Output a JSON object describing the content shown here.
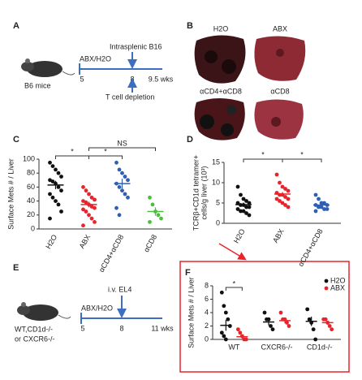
{
  "panels": {
    "A": {
      "label": "A",
      "subject": "B6 mice",
      "treatment": "ABX/H2O",
      "event": "Intrasplenic B16",
      "ticks": [
        "5",
        "8",
        "9.5 wks"
      ],
      "depletion": "T cell depletion"
    },
    "B": {
      "label": "B",
      "photos": [
        "H2O",
        "ABX",
        "αCD4+αCD8",
        "αCD8"
      ]
    },
    "C": {
      "label": "C"
    },
    "D": {
      "label": "D"
    },
    "E": {
      "label": "E",
      "subject": [
        "WT,CD1d-/-",
        "or CXCR6-/-"
      ],
      "treatment": "ABX/H2O",
      "event": "i.v. EL4",
      "ticks": [
        "5",
        "8",
        "11 wks"
      ]
    },
    "F": {
      "label": "F"
    }
  },
  "chart_data": [
    {
      "type": "strip",
      "ylabel": [
        "Surface Mets # / Liver"
      ],
      "categories": [
        "H2O",
        "ABX",
        "αCD4+αCD8",
        "αCD8"
      ],
      "ylim": [
        0,
        100
      ],
      "yticks": [
        0,
        20,
        40,
        60,
        80,
        100
      ],
      "series": [
        {
          "colors": [
            "#111111",
            "#e8242b",
            "#2f5fb3",
            "#4bbf3c"
          ],
          "points": [
            [
              95,
              90,
              85,
              80,
              75,
              70,
              68,
              65,
              60,
              55,
              50,
              45,
              40,
              35,
              25,
              15
            ],
            [
              60,
              55,
              50,
              45,
              42,
              40,
              38,
              35,
              32,
              30,
              28,
              25,
              20,
              15,
              10,
              5
            ],
            [
              95,
              85,
              80,
              75,
              70,
              65,
              60,
              55,
              50,
              45,
              30,
              20
            ],
            [
              45,
              35,
              25,
              20,
              15,
              10
            ]
          ],
          "means": [
            63,
            35,
            65,
            25
          ],
          "sems": [
            6,
            4,
            7,
            6
          ]
        }
      ],
      "brackets": [
        "*",
        "*",
        "NS"
      ]
    },
    {
      "type": "strip",
      "ylabel": [
        "TCRβ+CD1d tetramer+",
        "cells/g liver (10³)"
      ],
      "categories": [
        "H2O",
        "ABX",
        "αCD4+αCD8"
      ],
      "ylim": [
        0,
        15
      ],
      "yticks": [
        0,
        5,
        10,
        15
      ],
      "series": [
        {
          "colors": [
            "#111111",
            "#e8242b",
            "#2f5fb3"
          ],
          "points": [
            [
              9,
              7,
              6,
              5.5,
              5,
              5,
              4.5,
              4.5,
              4,
              4,
              3.5,
              3,
              3,
              2.5,
              2
            ],
            [
              12,
              10,
              9,
              8.5,
              8,
              7.5,
              7,
              7,
              6.5,
              6,
              6,
              5.5,
              5,
              4.5,
              4
            ],
            [
              7,
              6,
              5,
              5,
              4.5,
              4.5,
              4,
              4,
              3.5,
              3.5,
              3
            ]
          ],
          "means": [
            4.6,
            7.2,
            4.5
          ],
          "sems": [
            0.5,
            0.5,
            0.4
          ]
        }
      ],
      "brackets": [
        "*",
        "*"
      ]
    },
    {
      "type": "strip",
      "ylabel": [
        "Surface Mets # / Liver"
      ],
      "categories": [
        "WT",
        "CXCR6-/-",
        "CD1d-/-"
      ],
      "ylim": [
        0,
        8
      ],
      "yticks": [
        0,
        2,
        4,
        6,
        8
      ],
      "legend": "upper right",
      "series": [
        {
          "name": "H2O",
          "color": "#111111",
          "points": [
            [
              7,
              5,
              4,
              3,
              2,
              1,
              0.5,
              0
            ],
            [
              4,
              3,
              3,
              2,
              1.5
            ],
            [
              4.5,
              3,
              2.5,
              1.5,
              0
            ]
          ],
          "means": [
            2.1,
            2.6,
            2.7
          ],
          "sems": [
            0.8,
            0.5,
            0.7
          ]
        },
        {
          "name": "ABX",
          "color": "#e8242b",
          "points": [
            [
              1.5,
              1,
              0.5,
              0,
              0
            ],
            [
              4,
              3,
              3,
              2.5,
              2
            ],
            [
              3,
              3,
              2.5,
              2,
              1.5
            ]
          ],
          "means": [
            0.4,
            2.8,
            2.5
          ],
          "sems": [
            0.3,
            0.4,
            0.3
          ]
        }
      ],
      "brackets": [
        "*"
      ]
    }
  ]
}
